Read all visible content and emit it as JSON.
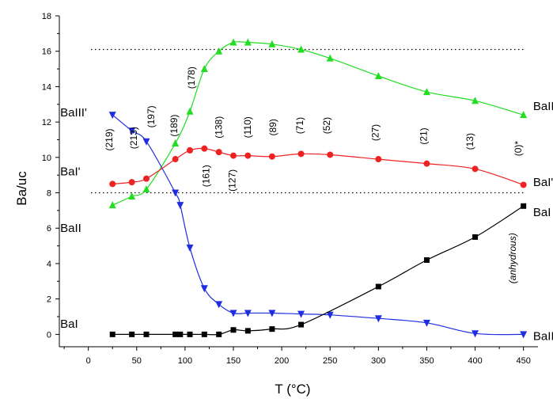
{
  "chart_data": {
    "type": "line",
    "xlabel": "T (°C)",
    "ylabel": "Ba/uc",
    "xlim": [
      -30,
      465
    ],
    "ylim": [
      -0.7,
      18
    ],
    "xticks": [
      0,
      50,
      100,
      150,
      200,
      250,
      300,
      350,
      400,
      450
    ],
    "yticks": [
      0,
      2,
      4,
      6,
      8,
      10,
      12,
      14,
      16,
      18
    ],
    "reference_lines": [
      8,
      16.1
    ],
    "series": [
      {
        "name": "BaII",
        "color": "#22dd22",
        "marker": "triangle-up",
        "x": [
          25,
          45,
          60,
          90,
          105,
          120,
          135,
          150,
          165,
          190,
          220,
          250,
          300,
          350,
          400,
          450
        ],
        "y": [
          7.3,
          7.8,
          8.2,
          10.8,
          12.6,
          15.0,
          16.0,
          16.5,
          16.5,
          16.4,
          16.1,
          15.6,
          14.6,
          13.7,
          13.2,
          12.4
        ]
      },
      {
        "name": "BaIII'",
        "color": "#1e2ee0",
        "marker": "triangle-down",
        "x": [
          25,
          45,
          60,
          90,
          95,
          105,
          120,
          135,
          150,
          165,
          190,
          220,
          250,
          300,
          350,
          400,
          450
        ],
        "y": [
          12.4,
          11.5,
          10.9,
          8.0,
          7.3,
          4.9,
          2.6,
          1.7,
          1.2,
          1.2,
          1.2,
          1.15,
          1.1,
          0.9,
          0.65,
          0.05,
          0.0
        ]
      },
      {
        "name": "BaI'",
        "color": "#ee2222",
        "marker": "circle",
        "x": [
          25,
          45,
          60,
          90,
          105,
          120,
          135,
          150,
          165,
          190,
          220,
          250,
          300,
          350,
          400,
          450
        ],
        "y": [
          8.5,
          8.6,
          8.8,
          9.9,
          10.4,
          10.5,
          10.3,
          10.1,
          10.1,
          10.05,
          10.2,
          10.15,
          9.9,
          9.65,
          9.35,
          8.45
        ]
      },
      {
        "name": "BaI",
        "color": "#000000",
        "marker": "square",
        "x": [
          25,
          45,
          60,
          90,
          95,
          105,
          120,
          135,
          150,
          165,
          190,
          220,
          300,
          350,
          400,
          450
        ],
        "y": [
          0,
          0,
          0,
          0,
          0,
          0,
          0,
          0,
          0.25,
          0.2,
          0.3,
          0.55,
          2.7,
          4.2,
          5.5,
          7.25
        ]
      }
    ],
    "series_labels": [
      {
        "text": "BaIII'",
        "x": -25,
        "y": 12.55
      },
      {
        "text": "BaI'",
        "x": -25,
        "y": 9.2
      },
      {
        "text": "BaII",
        "x": -25,
        "y": 6.0
      },
      {
        "text": "BaI",
        "x": -25,
        "y": 0.6
      },
      {
        "text": "BaII",
        "x": 460,
        "y": 12.9
      },
      {
        "text": "BaI'",
        "x": 460,
        "y": 8.6
      },
      {
        "text": "BaI",
        "x": 460,
        "y": 6.9
      },
      {
        "text": "BaIII'",
        "x": 460,
        "y": -0.1
      }
    ],
    "annotations": [
      {
        "text": "(219)",
        "x": 25,
        "y": 11.0
      },
      {
        "text": "(213)",
        "x": 50,
        "y": 11.1
      },
      {
        "text": "(197)",
        "x": 68,
        "y": 12.3
      },
      {
        "text": "(189)",
        "x": 92,
        "y": 11.8
      },
      {
        "text": "(178)",
        "x": 110,
        "y": 14.5
      },
      {
        "text": "(161)",
        "x": 125,
        "y": 8.95
      },
      {
        "text": "(138)",
        "x": 138,
        "y": 11.7
      },
      {
        "text": "(127)",
        "x": 152,
        "y": 8.7
      },
      {
        "text": "(110)",
        "x": 168,
        "y": 11.7
      },
      {
        "text": "(89)",
        "x": 194,
        "y": 11.7
      },
      {
        "text": "(71)",
        "x": 222,
        "y": 11.8
      },
      {
        "text": "(52)",
        "x": 250,
        "y": 11.8
      },
      {
        "text": "(27)",
        "x": 300,
        "y": 11.4
      },
      {
        "text": "(21)",
        "x": 350,
        "y": 11.2
      },
      {
        "text": "(13)",
        "x": 398,
        "y": 10.9
      },
      {
        "text": "(0)*",
        "x": 448,
        "y": 10.5
      },
      {
        "text": "(anhydrous)",
        "x": 442,
        "y": 4.3,
        "italic": true
      }
    ]
  }
}
